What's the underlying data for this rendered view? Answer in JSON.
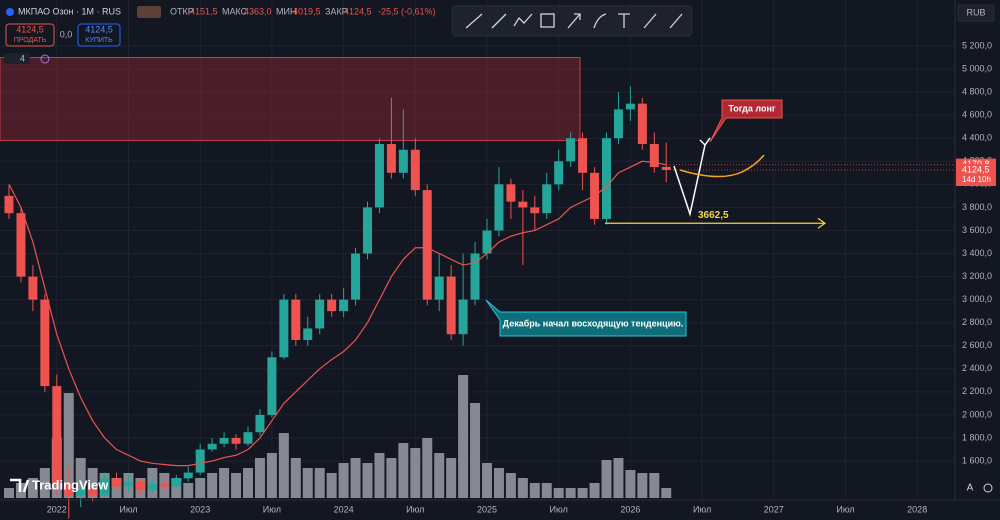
{
  "header": {
    "symbol": "МКПАО Озон · 1М · RUS",
    "open_label": "ОТКР",
    "open": "4151,5",
    "high_label": "МАКС",
    "high": "4363,0",
    "low_label": "МИН",
    "low": "4019,5",
    "close_label": "ЗАКР",
    "close": "4124,5",
    "change": "-25,5 (-0,61%)",
    "sell_price": "4124,5",
    "sell": "ПРОДАТЬ",
    "spread": "0,0",
    "buy_price": "4124,5",
    "buy": "КУПИТЬ",
    "indicators": "4",
    "currency": "RUB",
    "brand": "TradingView",
    "auto": "A"
  },
  "chart_data": {
    "type": "candlestick",
    "categories": [
      null,
      null,
      null,
      null,
      "2022",
      null,
      null,
      null,
      null,
      null,
      "Июл",
      null,
      null,
      null,
      null,
      null,
      "2023",
      null,
      null,
      null,
      null,
      null,
      "Июл",
      null,
      null,
      null,
      null,
      null,
      "2024",
      null,
      null,
      null,
      null,
      null,
      "Июл",
      null,
      null,
      null,
      null,
      null,
      "2025",
      null,
      null,
      null,
      null,
      null,
      "Июл",
      null,
      null,
      null,
      null,
      null,
      "2026",
      null,
      null,
      null,
      null,
      null,
      "Июл",
      null,
      null,
      null,
      null,
      null,
      "2027",
      null,
      null,
      null,
      null,
      null,
      "Июл",
      null,
      null,
      null,
      null,
      null,
      "2028",
      null
    ],
    "open": [
      3900,
      3750,
      3200,
      3000,
      2250,
      1400,
      1300,
      1350,
      1300,
      1450,
      1380,
      1420,
      1350,
      1400,
      1380,
      1450,
      1500,
      1700,
      1750,
      1800,
      1750,
      1850,
      2000,
      2500,
      3000,
      2650,
      2750,
      3000,
      2900,
      3000,
      3400,
      3800,
      4350,
      4100,
      4300,
      3950,
      3000,
      3200,
      2700,
      3000,
      3400,
      3600,
      4000,
      3850,
      3800,
      3750,
      4000,
      4200,
      4400,
      4100,
      3700,
      4400,
      4650,
      4700,
      4350,
      4151.5,
      null,
      null,
      null,
      null,
      null,
      null,
      null,
      null,
      null,
      null,
      null,
      null,
      null,
      null,
      null,
      null,
      null,
      null,
      null,
      null,
      null,
      null
    ],
    "high": [
      4000,
      3800,
      3300,
      3050,
      2350,
      1550,
      1450,
      1400,
      1500,
      1500,
      1480,
      1450,
      1450,
      1430,
      1480,
      1550,
      1750,
      1800,
      1850,
      1830,
      1900,
      2050,
      2550,
      3050,
      3050,
      2850,
      3050,
      3050,
      3100,
      3450,
      3850,
      4400,
      4750,
      4650,
      4400,
      4000,
      3400,
      3300,
      3400,
      3500,
      3700,
      4150,
      4050,
      3950,
      3900,
      4100,
      4300,
      4450,
      4450,
      4150,
      4450,
      4800,
      4850,
      4750,
      4450,
      4363.0,
      null,
      null,
      null,
      null,
      null,
      null,
      null,
      null,
      null,
      null,
      null,
      null,
      null,
      null,
      null,
      null,
      null,
      null,
      null,
      null,
      null,
      null
    ],
    "low": [
      3700,
      3150,
      2900,
      2200,
      1300,
      1100,
      1200,
      1250,
      1280,
      1350,
      1330,
      1300,
      1320,
      1340,
      1360,
      1420,
      1480,
      1680,
      1720,
      1700,
      1730,
      1820,
      1980,
      2480,
      2600,
      2600,
      2700,
      2850,
      2850,
      2950,
      3350,
      3750,
      4050,
      4050,
      3900,
      2950,
      2900,
      2650,
      2600,
      2950,
      3350,
      3550,
      3700,
      3300,
      3600,
      3700,
      3950,
      4150,
      3950,
      3650,
      3650,
      4350,
      4550,
      4300,
      4100,
      4019.5,
      null,
      null,
      null,
      null,
      null,
      null,
      null,
      null,
      null,
      null,
      null,
      null,
      null,
      null,
      null,
      null,
      null,
      null,
      null,
      null,
      null,
      null
    ],
    "close": [
      3750,
      3200,
      3000,
      2250,
      1400,
      1300,
      1350,
      1300,
      1450,
      1380,
      1420,
      1350,
      1400,
      1380,
      1450,
      1500,
      1700,
      1750,
      1800,
      1750,
      1850,
      2000,
      2500,
      3000,
      2650,
      2750,
      3000,
      2900,
      3000,
      3400,
      3800,
      4350,
      4100,
      4300,
      3950,
      3000,
      3200,
      2700,
      3000,
      3400,
      3600,
      4000,
      3850,
      3800,
      3750,
      4000,
      4200,
      4400,
      4100,
      3700,
      4400,
      4650,
      4700,
      4350,
      4150,
      4124.5,
      null,
      null,
      null,
      null,
      null,
      null,
      null,
      null,
      null,
      null,
      null,
      null,
      null,
      null,
      null,
      null,
      null,
      null,
      null,
      null,
      null,
      null
    ],
    "volume": [
      10,
      15,
      20,
      30,
      60,
      105,
      40,
      30,
      25,
      20,
      25,
      20,
      30,
      25,
      20,
      15,
      20,
      25,
      30,
      25,
      30,
      40,
      45,
      65,
      40,
      30,
      30,
      25,
      35,
      40,
      35,
      45,
      40,
      55,
      50,
      60,
      45,
      40,
      123,
      95,
      35,
      30,
      25,
      20,
      15,
      15,
      10,
      10,
      10,
      15,
      38,
      40,
      28,
      25,
      25,
      10,
      null,
      null,
      null,
      null,
      null,
      null,
      null,
      null,
      null,
      null,
      null,
      null,
      null,
      null,
      null,
      null,
      null,
      null,
      null,
      null,
      null,
      null
    ],
    "ma": [
      4000,
      3800,
      3500,
      3100,
      2700,
      2400,
      2150,
      1950,
      1800,
      1700,
      1650,
      1600,
      1580,
      1570,
      1560,
      1560,
      1580,
      1600,
      1630,
      1650,
      1700,
      1800,
      1950,
      2100,
      2200,
      2300,
      2400,
      2480,
      2550,
      2650,
      2800,
      3000,
      3200,
      3350,
      3450,
      3450,
      3400,
      3350,
      3300,
      3320,
      3400,
      3500,
      3550,
      3580,
      3600,
      3650,
      3700,
      3800,
      3850,
      3900,
      3980,
      4100,
      4150,
      4200,
      4190,
      4170.8,
      null,
      null,
      null,
      null,
      null,
      null,
      null,
      null,
      null,
      null,
      null,
      null,
      null,
      null,
      null,
      null,
      null,
      null,
      null,
      null,
      null,
      null
    ],
    "up_color": "#26a69a",
    "down_color": "#ef5350",
    "volume_color": "#9b9ea6",
    "ma_color": "#ef5350",
    "ylim": [
      1262,
      5599
    ],
    "yticks": [
      {
        "value": 1600,
        "label": "1 600,0"
      },
      {
        "value": 1800,
        "label": "1 800,0"
      },
      {
        "value": 2000,
        "label": "2 000,0"
      },
      {
        "value": 2200,
        "label": "2 200,0"
      },
      {
        "value": 2400,
        "label": "2 400,0"
      },
      {
        "value": 2600,
        "label": "2 600,0"
      },
      {
        "value": 2800,
        "label": "2 800,0"
      },
      {
        "value": 3000,
        "label": "3 000,0"
      },
      {
        "value": 3200,
        "label": "3 200,0"
      },
      {
        "value": 3400,
        "label": "3 400,0"
      },
      {
        "value": 3600,
        "label": "3 600,0"
      },
      {
        "value": 3800,
        "label": "3 800,0"
      },
      {
        "value": 4000,
        "label": "4 000,0"
      },
      {
        "value": 4200,
        "label": "4 200,0"
      },
      {
        "value": 4400,
        "label": "4 400,0"
      },
      {
        "value": 4600,
        "label": "4 600,0"
      },
      {
        "value": 4800,
        "label": "4 800,0"
      },
      {
        "value": 5000,
        "label": "5 000,0"
      },
      {
        "value": 5200,
        "label": "5 200,0"
      }
    ],
    "grid": true,
    "zone": {
      "low": 4380,
      "high": 5100
    },
    "price_labels": [
      {
        "value": 4170.8,
        "label": "4170,8"
      },
      {
        "value": 4124.5,
        "label": "4124,5",
        "timer": "14d 10h"
      }
    ],
    "level": {
      "value": 3662.5,
      "label": "3662,5"
    },
    "annotations": [
      "Тогда лонг",
      "Декабрь начал восходящую тенденцию."
    ]
  }
}
